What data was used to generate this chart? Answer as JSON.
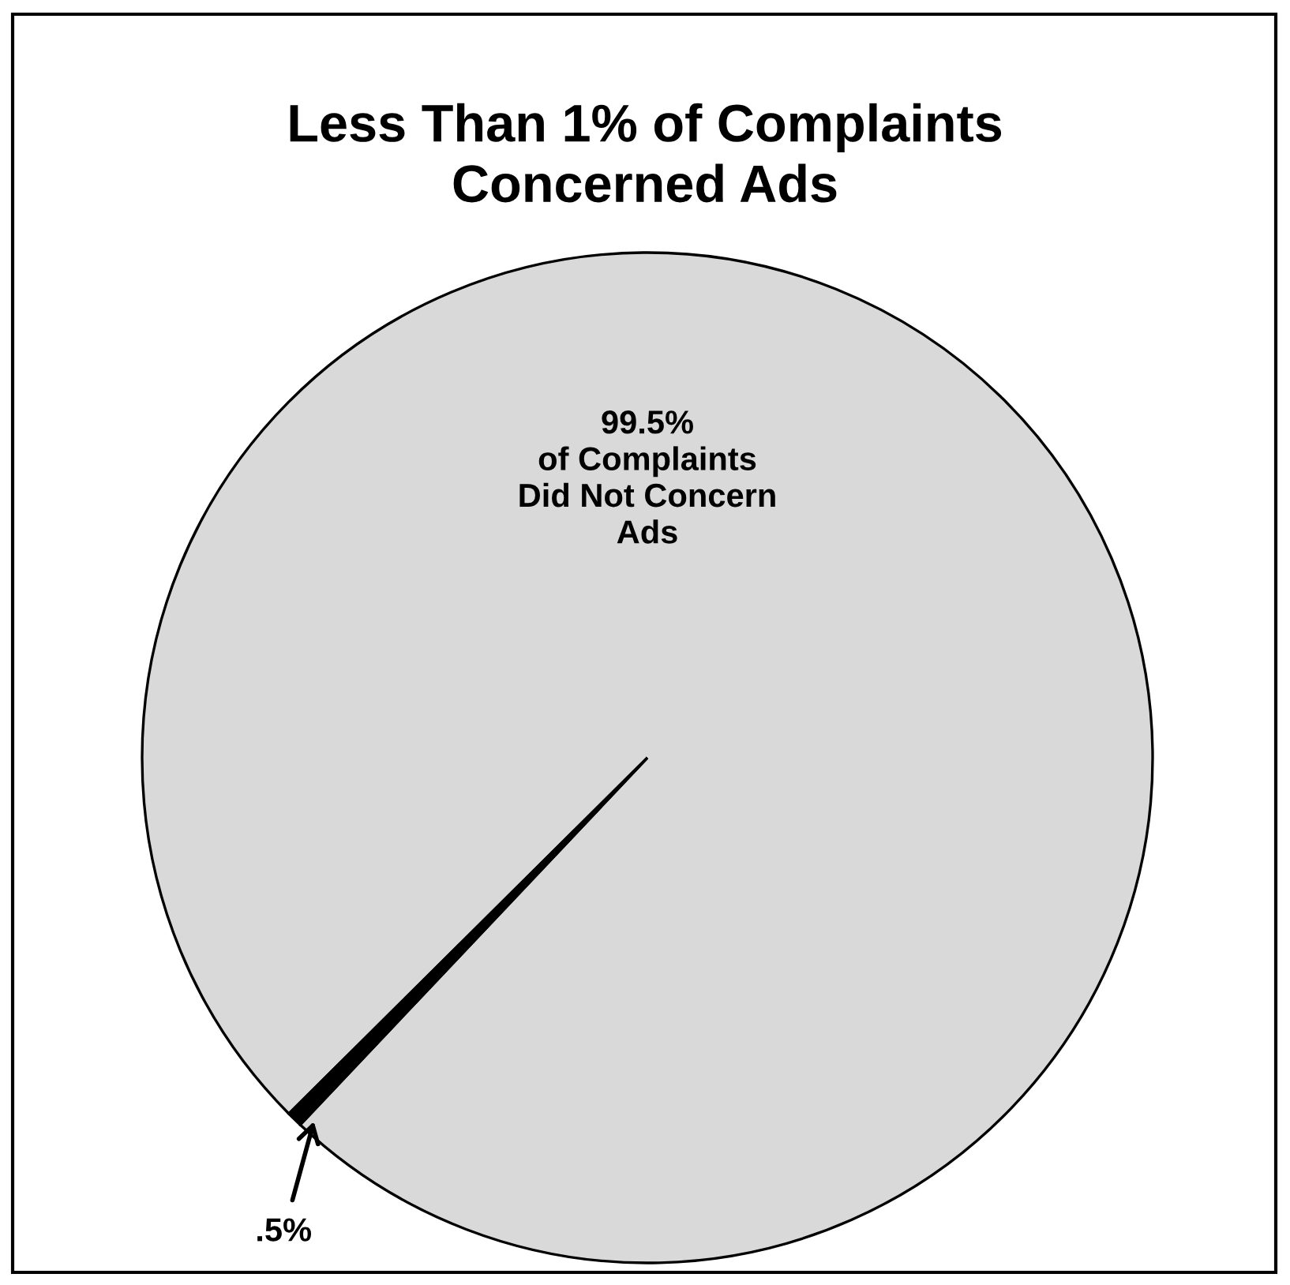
{
  "chart_data": {
    "type": "pie",
    "title": "Less Than 1% of Complaints\nConcerned Ads",
    "categories": [
      "of Complaints\nDid Not Concern\nAds",
      null
    ],
    "values": [
      99.5,
      0.5
    ],
    "colors": [
      "#d9d9d9",
      "#000000"
    ],
    "value_labels": [
      "99.5%",
      ".5%"
    ]
  }
}
